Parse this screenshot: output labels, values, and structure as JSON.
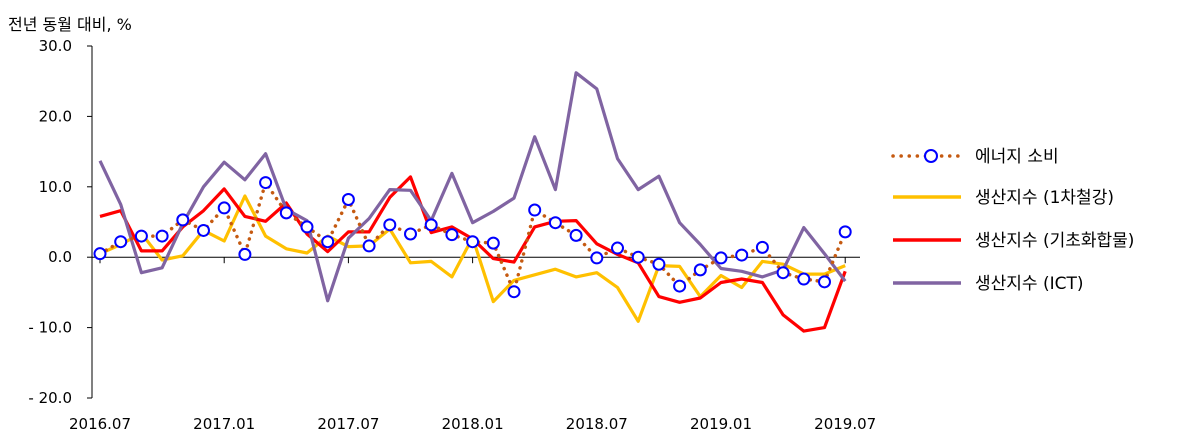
{
  "chart_data": {
    "type": "line",
    "unit_label": "전년 동월 대비, %",
    "ylim": [
      -20,
      30
    ],
    "yticks": [
      "30.0",
      "20.0",
      "10.0",
      "0.0",
      "- 10.0",
      "- 20.0"
    ],
    "ytick_values": [
      30,
      20,
      10,
      0,
      -10,
      -20
    ],
    "x_tick_labels": [
      "2016.07",
      "2017.01",
      "2017.07",
      "2018.01",
      "2018.07",
      "2019.01",
      "2019.07"
    ],
    "x_tick_index": [
      0,
      6,
      12,
      18,
      24,
      30,
      36
    ],
    "x": [
      "2016.07",
      "2016.08",
      "2016.09",
      "2016.10",
      "2016.11",
      "2016.12",
      "2017.01",
      "2017.02",
      "2017.03",
      "2017.04",
      "2017.05",
      "2017.06",
      "2017.07",
      "2017.08",
      "2017.09",
      "2017.10",
      "2017.11",
      "2017.12",
      "2018.01",
      "2018.02",
      "2018.03",
      "2018.04",
      "2018.05",
      "2018.06",
      "2018.07",
      "2018.08",
      "2018.09",
      "2018.10",
      "2018.11",
      "2018.12",
      "2019.01",
      "2019.02",
      "2019.03",
      "2019.04",
      "2019.05",
      "2019.06",
      "2019.07"
    ],
    "grid": false,
    "legend_position": "right",
    "series": [
      {
        "name": "에너지 소비",
        "style": "dotted-circle",
        "color": "#C55A11",
        "marker_color": "#0000FF",
        "values": [
          0.5,
          2.2,
          3.0,
          3.0,
          5.3,
          3.8,
          7.0,
          0.4,
          10.6,
          6.3,
          4.3,
          2.2,
          8.2,
          1.6,
          4.6,
          3.3,
          4.6,
          3.2,
          2.2,
          2.0,
          -4.9,
          6.7,
          4.9,
          3.1,
          -0.1,
          1.3,
          0.0,
          -1.0,
          -4.1,
          -1.8,
          -0.1,
          0.3,
          1.4,
          -2.2,
          -3.1,
          -3.5,
          3.6
        ]
      },
      {
        "name": "생산지수 (1차철강)",
        "style": "line",
        "color": "#FFC000",
        "values": [
          0.5,
          1.8,
          3.4,
          -0.4,
          0.2,
          3.8,
          2.3,
          8.7,
          3.0,
          1.2,
          0.6,
          3.0,
          1.5,
          1.6,
          4.0,
          -0.8,
          -0.6,
          -2.8,
          2.8,
          -6.3,
          -3.3,
          -2.5,
          -1.7,
          -2.8,
          -2.2,
          -4.3,
          -9.1,
          -1.2,
          -1.3,
          -5.6,
          -2.6,
          -4.3,
          -0.6,
          -1.0,
          -2.4,
          -2.4,
          -1.2
        ]
      },
      {
        "name": "생산지수 (기초화합물)",
        "style": "line",
        "color": "#FF0000",
        "values": [
          5.8,
          6.6,
          0.9,
          0.9,
          4.3,
          6.6,
          9.7,
          5.8,
          5.1,
          7.7,
          3.3,
          0.8,
          3.6,
          3.6,
          8.5,
          11.4,
          3.5,
          4.3,
          2.6,
          -0.2,
          -0.7,
          4.3,
          5.1,
          5.2,
          1.9,
          0.4,
          -0.8,
          -5.6,
          -6.4,
          -5.8,
          -3.6,
          -3.1,
          -3.6,
          -8.2,
          -10.5,
          -10.0,
          -2.0
        ]
      },
      {
        "name": "생산지수 (ICT)",
        "style": "line",
        "color": "#8064A2",
        "values": [
          13.7,
          7.5,
          -2.2,
          -1.5,
          4.8,
          10.0,
          13.5,
          11.0,
          14.7,
          6.8,
          5.2,
          -6.2,
          2.7,
          5.5,
          9.6,
          9.5,
          5.2,
          11.9,
          4.9,
          6.5,
          8.4,
          17.1,
          9.6,
          26.2,
          23.9,
          14.0,
          9.6,
          11.5,
          4.9,
          1.8,
          -1.6,
          -2.0,
          -2.8,
          -1.8,
          4.2,
          0.5,
          -3.4
        ]
      }
    ]
  }
}
